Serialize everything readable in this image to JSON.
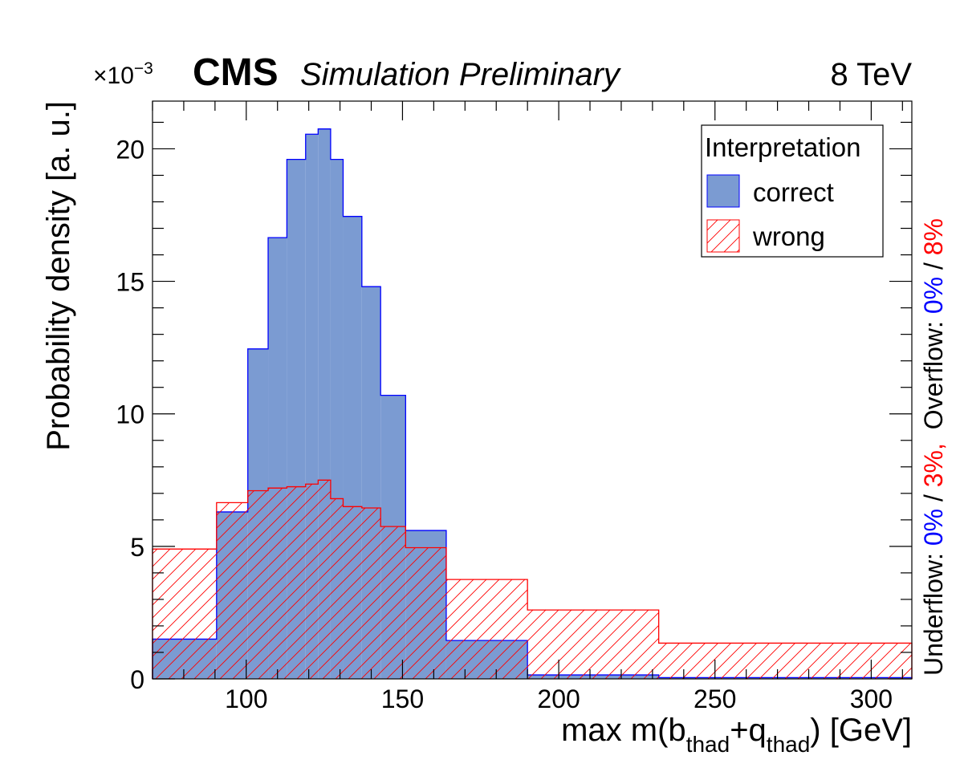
{
  "header": {
    "cms_label": "CMS",
    "subtitle": "Simulation Preliminary",
    "energy": "8 TeV",
    "exponent_prefix": "×10",
    "exponent_value": "−3"
  },
  "side_note": {
    "underflow_label": "Underflow:",
    "underflow_correct": "0%",
    "underflow_sep": "/",
    "underflow_wrong": "3%,",
    "overflow_label": "Overflow:",
    "overflow_correct": "0%",
    "overflow_sep": "/",
    "overflow_wrong": "8%"
  },
  "colors": {
    "correct_fill": "#7b9bd2",
    "correct_line": "#0000ff",
    "wrong_line": "#ff0000"
  },
  "chart_data": {
    "type": "histogram",
    "title": "CMS Simulation Preliminary",
    "xlabel_main": "max m(b",
    "xlabel_sub1": "thad",
    "xlabel_mid": "+q",
    "xlabel_sub2": "thad",
    "xlabel_end": ") [GeV]",
    "ylabel": "Probability density [a. u.]",
    "y_scale_factor": "1e-3",
    "xlim": [
      70,
      313
    ],
    "ylim": [
      0,
      21.8
    ],
    "x_ticks": [
      100,
      150,
      200,
      250,
      300
    ],
    "y_ticks": [
      0,
      5,
      10,
      15,
      20
    ],
    "grid": false,
    "legend": {
      "title": "Interpretation",
      "position": "top-right"
    },
    "bin_edges": [
      70,
      90.5,
      100.5,
      107,
      113,
      119,
      123,
      127,
      131,
      137,
      143,
      151,
      164,
      190,
      232,
      313
    ],
    "series": [
      {
        "name": "correct",
        "style": "filled",
        "values": [
          1.5,
          6.3,
          12.45,
          16.65,
          19.6,
          20.55,
          20.75,
          19.6,
          17.45,
          14.8,
          10.7,
          5.6,
          1.45,
          0.15,
          0.05
        ]
      },
      {
        "name": "wrong",
        "style": "hatched",
        "values": [
          4.9,
          6.65,
          7.1,
          7.2,
          7.25,
          7.35,
          7.5,
          6.8,
          6.5,
          6.45,
          5.75,
          4.95,
          3.75,
          2.6,
          1.35
        ]
      }
    ]
  }
}
